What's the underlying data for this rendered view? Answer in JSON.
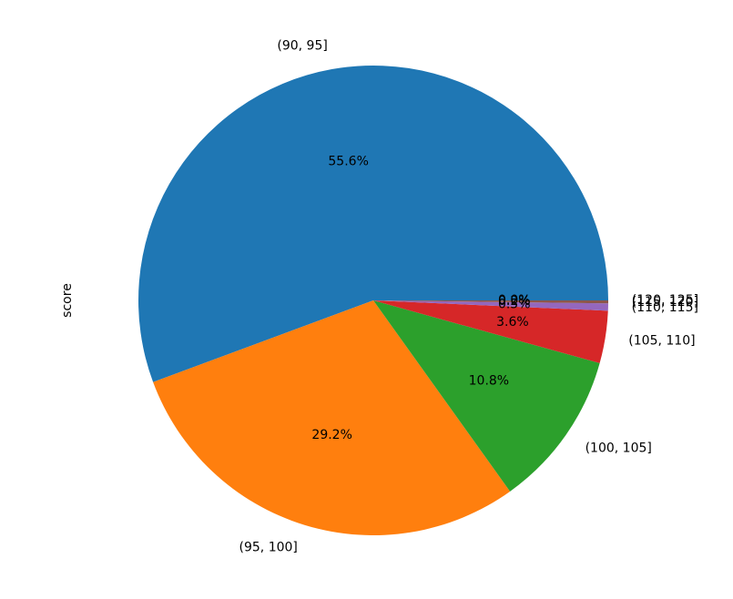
{
  "chart_data": {
    "type": "pie",
    "ylabel": "score",
    "categories": [
      "(90, 95]",
      "(95, 100]",
      "(100, 105]",
      "(105, 110]",
      "(110, 115]",
      "(115, 120]",
      "(120, 125]"
    ],
    "values": [
      55.6,
      29.2,
      10.8,
      3.6,
      0.5,
      0.2,
      0.0
    ],
    "value_labels": [
      "55.6%",
      "29.2%",
      "10.8%",
      "3.6%",
      "0.5%",
      "0.2%",
      "0.0%"
    ],
    "colors": [
      "#1f77b4",
      "#ff7f0e",
      "#2ca02c",
      "#d62728",
      "#9467bd",
      "#8c564b",
      "#e377c2"
    ]
  }
}
